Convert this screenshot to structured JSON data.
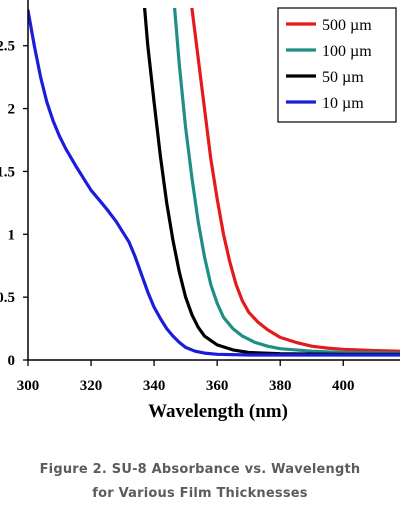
{
  "chart_data": {
    "type": "line",
    "xlabel": "Wavelength (nm)",
    "ylabel": "",
    "xlim": [
      300,
      418
    ],
    "ylim": [
      0,
      2.8
    ],
    "x_ticks": [
      "300",
      "320",
      "340",
      "360",
      "380",
      "400"
    ],
    "y_tick_values": [
      0,
      0.5,
      1,
      1.5,
      2,
      2.5
    ],
    "y_tick_labels": [
      "0",
      "0.5",
      "1",
      "1.5",
      "2",
      "2.5"
    ],
    "legend_position": "top-right",
    "grid": false,
    "series": [
      {
        "name": "500 µm",
        "color": "#e41a1c",
        "points": [
          [
            352,
            2.8
          ],
          [
            354,
            2.4
          ],
          [
            356,
            2.0
          ],
          [
            358,
            1.6
          ],
          [
            360,
            1.28
          ],
          [
            362,
            1.0
          ],
          [
            364,
            0.78
          ],
          [
            366,
            0.6
          ],
          [
            368,
            0.47
          ],
          [
            370,
            0.38
          ],
          [
            373,
            0.3
          ],
          [
            376,
            0.24
          ],
          [
            380,
            0.18
          ],
          [
            385,
            0.14
          ],
          [
            390,
            0.11
          ],
          [
            395,
            0.095
          ],
          [
            400,
            0.085
          ],
          [
            410,
            0.075
          ],
          [
            418,
            0.07
          ]
        ]
      },
      {
        "name": "100 µm",
        "color": "#1f8f86",
        "points": [
          [
            346.5,
            2.8
          ],
          [
            348,
            2.35
          ],
          [
            350,
            1.85
          ],
          [
            352,
            1.45
          ],
          [
            354,
            1.1
          ],
          [
            356,
            0.82
          ],
          [
            358,
            0.6
          ],
          [
            360,
            0.45
          ],
          [
            362,
            0.34
          ],
          [
            365,
            0.25
          ],
          [
            368,
            0.19
          ],
          [
            372,
            0.14
          ],
          [
            376,
            0.11
          ],
          [
            380,
            0.09
          ],
          [
            390,
            0.07
          ],
          [
            400,
            0.06
          ],
          [
            418,
            0.055
          ]
        ]
      },
      {
        "name": "50 µm",
        "color": "#000000",
        "points": [
          [
            337,
            2.8
          ],
          [
            338,
            2.5
          ],
          [
            340,
            2.05
          ],
          [
            342,
            1.62
          ],
          [
            344,
            1.25
          ],
          [
            346,
            0.95
          ],
          [
            348,
            0.7
          ],
          [
            350,
            0.5
          ],
          [
            352,
            0.36
          ],
          [
            354,
            0.26
          ],
          [
            356,
            0.19
          ],
          [
            360,
            0.12
          ],
          [
            365,
            0.08
          ],
          [
            370,
            0.06
          ],
          [
            380,
            0.05
          ],
          [
            400,
            0.045
          ],
          [
            418,
            0.045
          ]
        ]
      },
      {
        "name": "10 µm",
        "color": "#1c1cdb",
        "points": [
          [
            300,
            2.78
          ],
          [
            302,
            2.5
          ],
          [
            304,
            2.25
          ],
          [
            306,
            2.05
          ],
          [
            308,
            1.9
          ],
          [
            310,
            1.78
          ],
          [
            312,
            1.68
          ],
          [
            315,
            1.55
          ],
          [
            318,
            1.43
          ],
          [
            320,
            1.35
          ],
          [
            322,
            1.29
          ],
          [
            325,
            1.2
          ],
          [
            328,
            1.1
          ],
          [
            330,
            1.02
          ],
          [
            332,
            0.94
          ],
          [
            334,
            0.82
          ],
          [
            336,
            0.68
          ],
          [
            338,
            0.54
          ],
          [
            340,
            0.42
          ],
          [
            342,
            0.33
          ],
          [
            344,
            0.25
          ],
          [
            346,
            0.19
          ],
          [
            348,
            0.14
          ],
          [
            350,
            0.1
          ],
          [
            353,
            0.07
          ],
          [
            356,
            0.055
          ],
          [
            360,
            0.045
          ],
          [
            370,
            0.04
          ],
          [
            390,
            0.04
          ],
          [
            418,
            0.04
          ]
        ]
      }
    ]
  },
  "caption": {
    "line1": "Figure 2. SU-8 Absorbance vs. Wavelength",
    "line2": "for Various Film Thicknesses"
  }
}
